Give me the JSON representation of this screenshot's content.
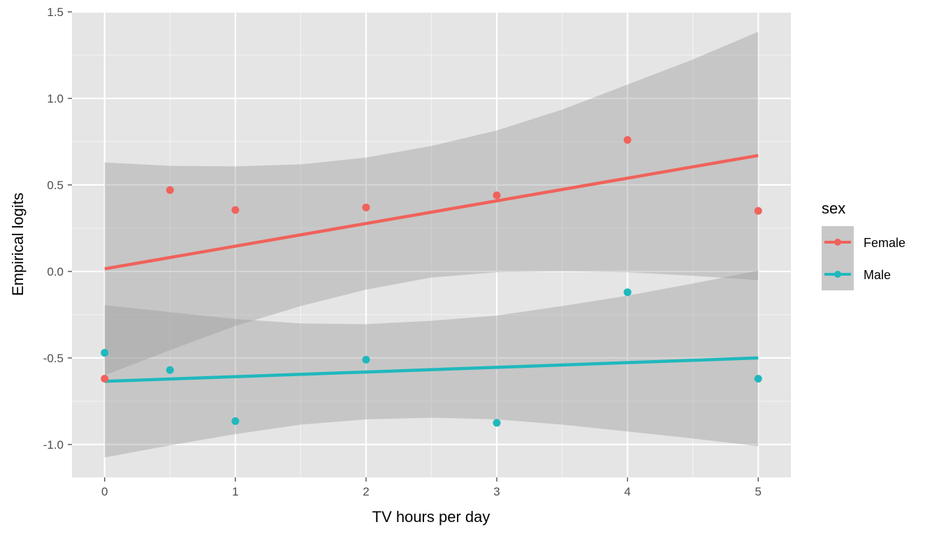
{
  "chart_data": {
    "type": "scatter",
    "title": "",
    "xlabel": "TV hours per day",
    "ylabel": "Empirical logits",
    "xlim": [
      -0.25,
      5.25
    ],
    "ylim": [
      -1.19,
      1.5
    ],
    "x_ticks": [
      0,
      1,
      2,
      3,
      4,
      5
    ],
    "x_tick_labels": [
      "0",
      "1",
      "2",
      "3",
      "4",
      "5"
    ],
    "y_ticks": [
      -1.0,
      -0.5,
      0.0,
      0.5,
      1.0,
      1.5
    ],
    "y_tick_labels": [
      "-1.0",
      "-0.5",
      "0.0",
      "0.5",
      "1.0",
      "1.5"
    ],
    "grid": true,
    "background": "#e5e5e5",
    "legend": {
      "title": "sex",
      "position": "right"
    },
    "series": [
      {
        "name": "Female",
        "color": "#f0625a",
        "points": [
          {
            "x": 0,
            "y": -0.62
          },
          {
            "x": 0.5,
            "y": 0.47
          },
          {
            "x": 1,
            "y": 0.355
          },
          {
            "x": 2,
            "y": 0.37
          },
          {
            "x": 3,
            "y": 0.44
          },
          {
            "x": 4,
            "y": 0.76
          },
          {
            "x": 5,
            "y": 0.35
          }
        ],
        "fit": {
          "x": [
            0,
            5
          ],
          "y": [
            0.015,
            0.67
          ]
        },
        "ci_upper": [
          {
            "x": 0,
            "y": 0.63
          },
          {
            "x": 0.5,
            "y": 0.61
          },
          {
            "x": 1,
            "y": 0.607
          },
          {
            "x": 1.5,
            "y": 0.619
          },
          {
            "x": 2,
            "y": 0.658
          },
          {
            "x": 2.5,
            "y": 0.725
          },
          {
            "x": 3,
            "y": 0.815
          },
          {
            "x": 3.5,
            "y": 0.935
          },
          {
            "x": 4,
            "y": 1.08
          },
          {
            "x": 4.5,
            "y": 1.225
          },
          {
            "x": 5,
            "y": 1.385
          }
        ],
        "ci_lower": [
          {
            "x": 0,
            "y": -0.6
          },
          {
            "x": 0.5,
            "y": -0.455
          },
          {
            "x": 1,
            "y": -0.315
          },
          {
            "x": 1.5,
            "y": -0.2
          },
          {
            "x": 2,
            "y": -0.105
          },
          {
            "x": 2.5,
            "y": -0.035
          },
          {
            "x": 3,
            "y": -0.005
          },
          {
            "x": 3.5,
            "y": 0.0
          },
          {
            "x": 4,
            "y": -0.005
          },
          {
            "x": 4.5,
            "y": -0.025
          },
          {
            "x": 5,
            "y": -0.05
          }
        ]
      },
      {
        "name": "Male",
        "color": "#1fb8bd",
        "points": [
          {
            "x": 0,
            "y": -0.47
          },
          {
            "x": 0.5,
            "y": -0.57
          },
          {
            "x": 1,
            "y": -0.865
          },
          {
            "x": 2,
            "y": -0.51
          },
          {
            "x": 3,
            "y": -0.875
          },
          {
            "x": 4,
            "y": -0.12
          },
          {
            "x": 5,
            "y": -0.62
          }
        ],
        "fit": {
          "x": [
            0,
            5
          ],
          "y": [
            -0.635,
            -0.5
          ]
        },
        "ci_upper": [
          {
            "x": 0,
            "y": -0.195
          },
          {
            "x": 0.5,
            "y": -0.235
          },
          {
            "x": 1,
            "y": -0.275
          },
          {
            "x": 1.5,
            "y": -0.3
          },
          {
            "x": 2,
            "y": -0.305
          },
          {
            "x": 2.5,
            "y": -0.285
          },
          {
            "x": 3,
            "y": -0.255
          },
          {
            "x": 3.5,
            "y": -0.2
          },
          {
            "x": 4,
            "y": -0.14
          },
          {
            "x": 4.5,
            "y": -0.07
          },
          {
            "x": 5,
            "y": 0.005
          }
        ],
        "ci_lower": [
          {
            "x": 0,
            "y": -1.075
          },
          {
            "x": 0.5,
            "y": -1.005
          },
          {
            "x": 1,
            "y": -0.94
          },
          {
            "x": 1.5,
            "y": -0.885
          },
          {
            "x": 2,
            "y": -0.855
          },
          {
            "x": 2.5,
            "y": -0.845
          },
          {
            "x": 3,
            "y": -0.855
          },
          {
            "x": 3.5,
            "y": -0.885
          },
          {
            "x": 4,
            "y": -0.925
          },
          {
            "x": 4.5,
            "y": -0.965
          },
          {
            "x": 5,
            "y": -1.01
          }
        ]
      }
    ]
  }
}
